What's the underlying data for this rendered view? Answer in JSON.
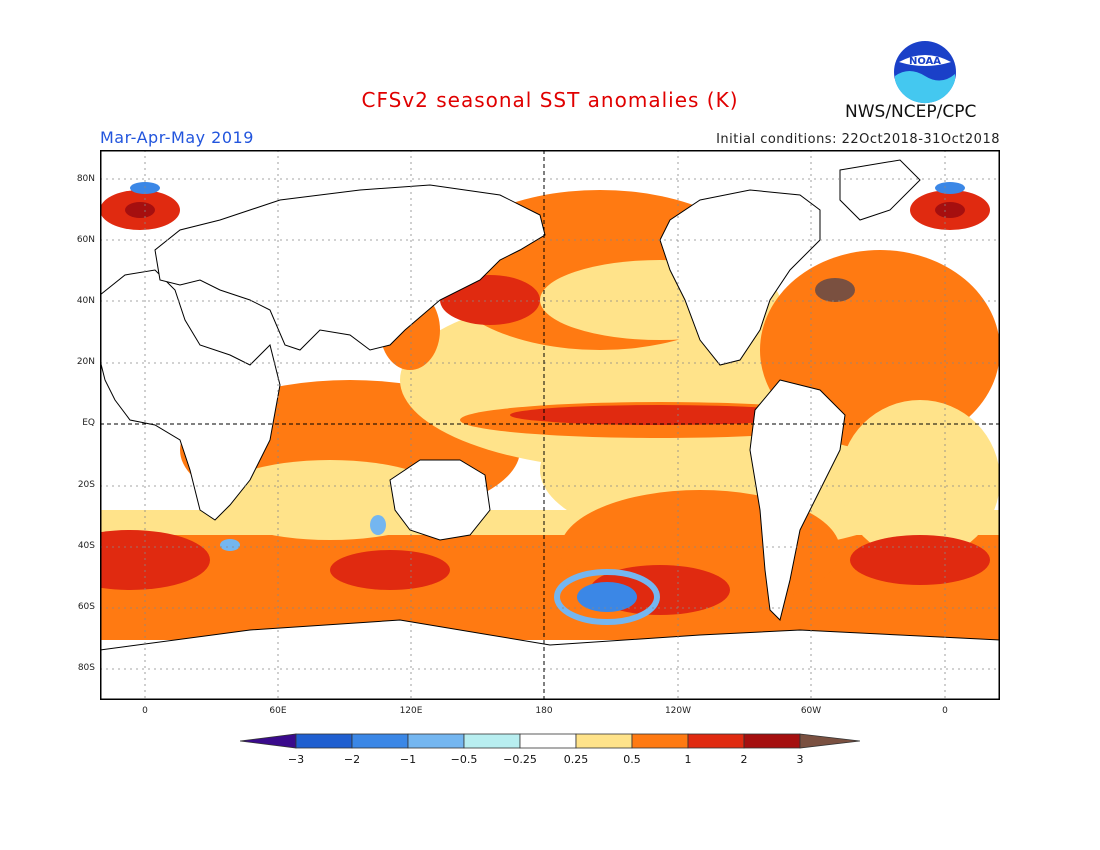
{
  "header": {
    "title": "CFSv2 seasonal SST anomalies (K)",
    "season": "Mar-Apr-May 2019",
    "initial_conditions": "Initial conditions: 22Oct2018-31Oct2018",
    "agency": "NWS/NCEP/CPC",
    "logo_text": "NOAA"
  },
  "axes": {
    "lat_labels": [
      "80N",
      "60N",
      "40N",
      "20N",
      "EQ",
      "20S",
      "40S",
      "60S",
      "80S"
    ],
    "lon_labels": [
      "0",
      "60E",
      "120E",
      "180",
      "120W",
      "60W",
      "0"
    ]
  },
  "colorbar": {
    "labels": [
      "−3",
      "−2",
      "−1",
      "−0.5",
      "−0.25",
      "0.25",
      "0.5",
      "1",
      "2",
      "3"
    ],
    "colors": [
      "#3a0a8c",
      "#1f5fd0",
      "#3b87e6",
      "#74b6f0",
      "#b8eef0",
      "#ffffff",
      "#ffe38a",
      "#ff7a12",
      "#e02a10",
      "#a50f0f",
      "#7a5040"
    ]
  }
}
